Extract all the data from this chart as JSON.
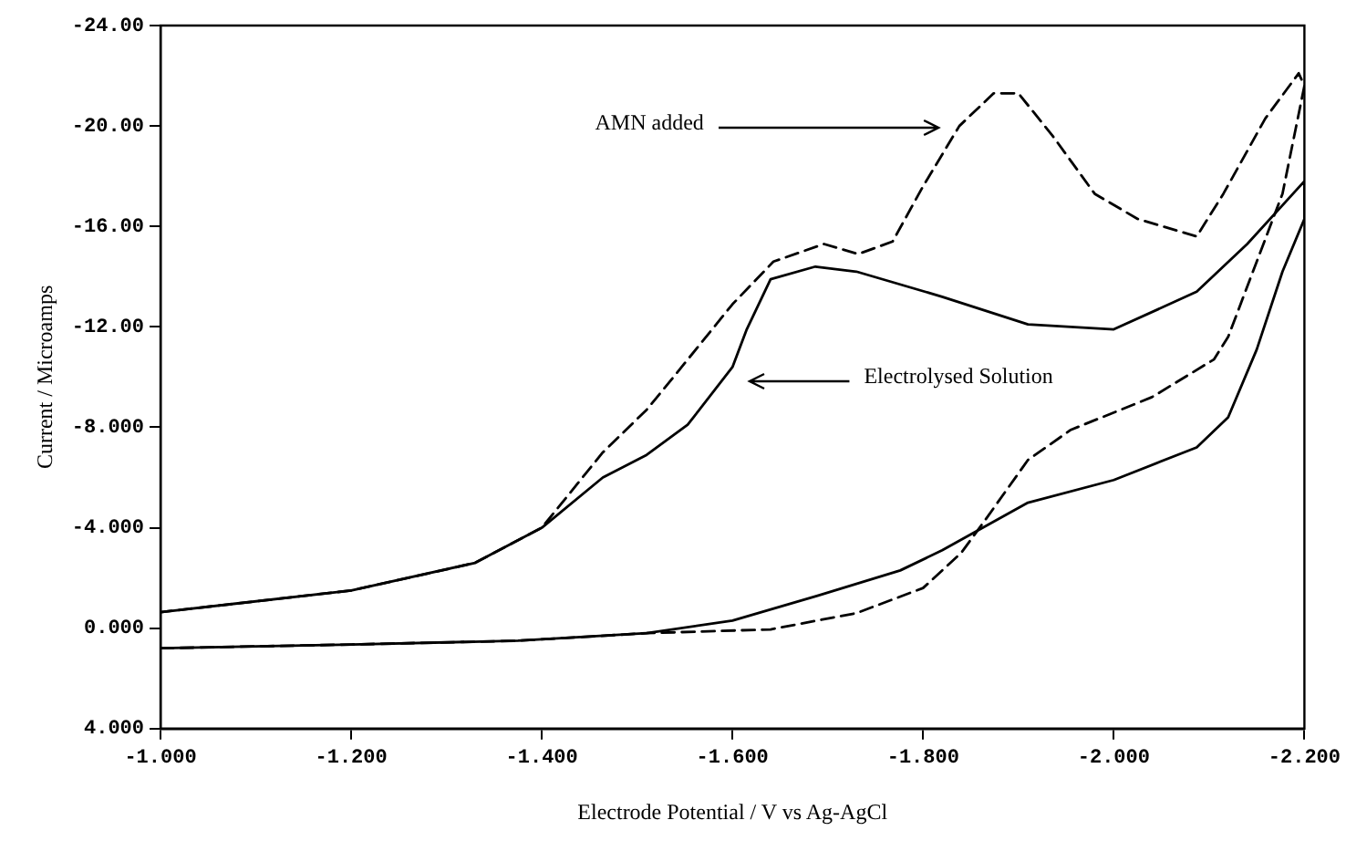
{
  "chart_data": {
    "type": "line",
    "xlabel": "Electrode Potential / V vs Ag-AgCl",
    "ylabel": "Current / Microamps",
    "xlim": [
      -1.0,
      -2.2
    ],
    "ylim": [
      4.0,
      -24.0
    ],
    "xticks": [
      {
        "value": -1.0,
        "label": "-1.000"
      },
      {
        "value": -1.2,
        "label": "-1.200"
      },
      {
        "value": -1.4,
        "label": "-1.400"
      },
      {
        "value": -1.6,
        "label": "-1.600"
      },
      {
        "value": -1.8,
        "label": "-1.800"
      },
      {
        "value": -2.0,
        "label": "-2.000"
      },
      {
        "value": -2.2,
        "label": "-2.200"
      }
    ],
    "yticks": [
      {
        "value": 4,
        "label": "4.000"
      },
      {
        "value": 0,
        "label": "0.000"
      },
      {
        "value": -4,
        "label": "-4.000"
      },
      {
        "value": -8,
        "label": "-8.000"
      },
      {
        "value": -12,
        "label": "-12.00"
      },
      {
        "value": -16,
        "label": "-16.00"
      },
      {
        "value": -20,
        "label": "-20.00"
      },
      {
        "value": -24,
        "label": "-24.00"
      }
    ],
    "grid": false,
    "legend": false,
    "marker": "none",
    "series": [
      {
        "color": "#000000",
        "line_style": "solid",
        "x": [
          -1.0,
          -1.2,
          -1.375,
          -1.51,
          -1.6,
          -1.69,
          -1.776,
          -1.82,
          -1.91,
          -2.0,
          -2.087,
          -2.12,
          -2.15,
          -2.177,
          -2.2,
          -2.2,
          -2.14,
          -2.087,
          -2.0,
          -1.91,
          -1.82,
          -1.73,
          -1.687,
          -1.64,
          -1.615,
          -1.6,
          -1.553,
          -1.51,
          -1.464,
          -1.4,
          -1.33,
          -1.2,
          -1.0
        ],
        "values": [
          0.8,
          0.65,
          0.5,
          0.2,
          -0.3,
          -1.3,
          -2.3,
          -3.1,
          -5.0,
          -5.9,
          -7.2,
          -8.4,
          -11.1,
          -14.2,
          -16.3,
          -17.8,
          -15.3,
          -13.4,
          -11.9,
          -12.1,
          -13.2,
          -14.2,
          -14.4,
          -13.9,
          -11.9,
          -10.4,
          -8.1,
          -6.9,
          -6.0,
          -4.0,
          -2.6,
          -1.5,
          -0.64
        ]
      },
      {
        "color": "#000000",
        "line_style": "dashed",
        "x": [
          -1.0,
          -1.2,
          -1.375,
          -1.51,
          -1.64,
          -1.73,
          -1.8,
          -1.84,
          -1.865,
          -1.91,
          -1.955,
          -2.04,
          -2.105,
          -2.12,
          -2.177,
          -2.2,
          -2.194,
          -2.159,
          -2.115,
          -2.087,
          -2.025,
          -1.98,
          -1.936,
          -1.9,
          -1.874,
          -1.838,
          -1.8,
          -1.768,
          -1.732,
          -1.696,
          -1.643,
          -1.6,
          -1.536,
          -1.51,
          -1.464,
          -1.4,
          -1.33,
          -1.2,
          -1.0
        ],
        "values": [
          0.8,
          0.65,
          0.5,
          0.2,
          0.05,
          -0.6,
          -1.6,
          -3.0,
          -4.3,
          -6.7,
          -7.9,
          -9.2,
          -10.7,
          -11.6,
          -17.3,
          -21.6,
          -22.1,
          -20.3,
          -17.3,
          -15.6,
          -16.3,
          -17.3,
          -19.6,
          -21.3,
          -21.3,
          -20.0,
          -17.6,
          -15.4,
          -14.9,
          -15.3,
          -14.6,
          -12.9,
          -9.9,
          -8.7,
          -7.0,
          -4.0,
          -2.6,
          -1.5,
          -0.64
        ]
      }
    ],
    "annotations": [
      "AMN added",
      "Electrolysed Solution"
    ]
  }
}
